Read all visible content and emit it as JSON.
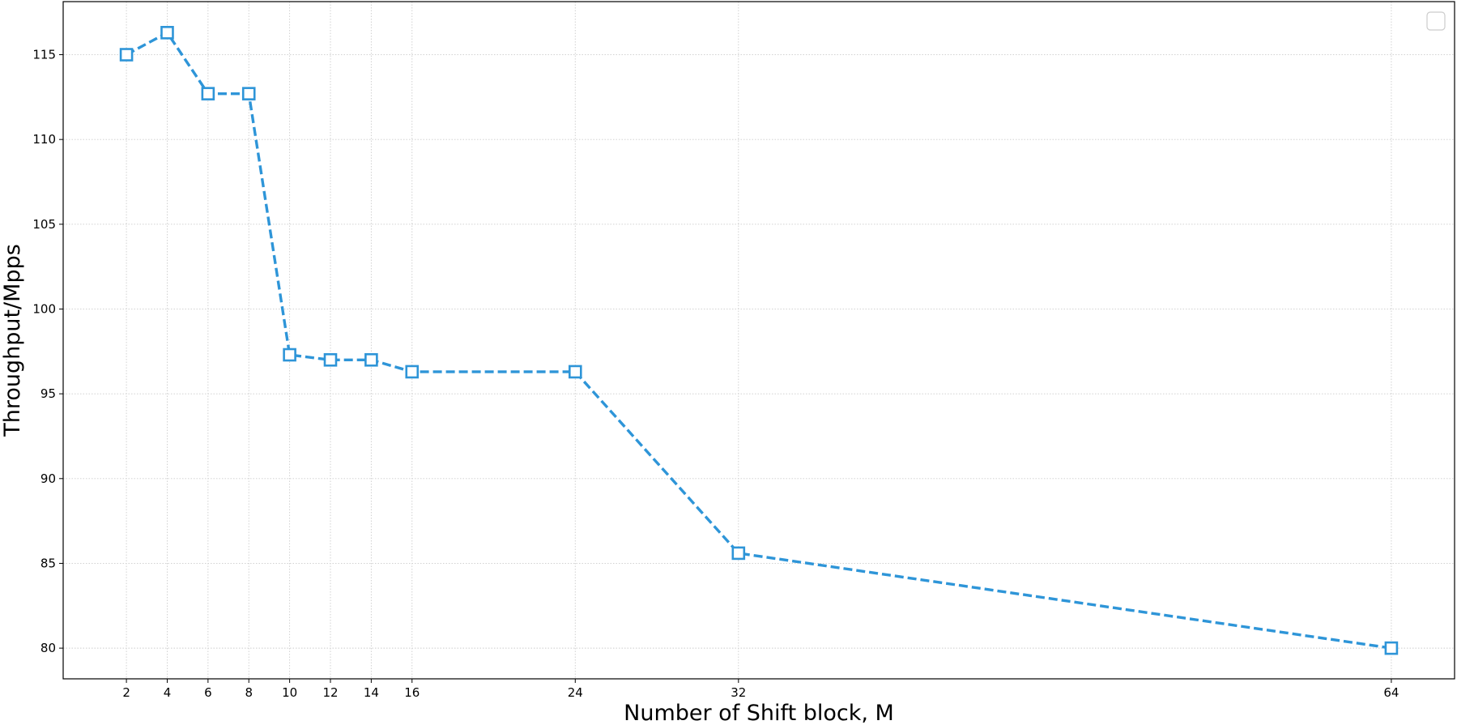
{
  "chart_data": {
    "type": "line",
    "xlabel": "Number of Shift block, M",
    "ylabel": "Throughput/Mpps",
    "x": [
      2,
      4,
      6,
      8,
      10,
      12,
      14,
      16,
      24,
      32,
      64
    ],
    "series": [
      {
        "color": "#2e95d8",
        "values": [
          115.0,
          116.3,
          112.7,
          112.7,
          97.3,
          97.0,
          97.0,
          96.3,
          96.3,
          85.6,
          80.0
        ]
      }
    ],
    "xlim": [
      -1.1,
      67.1
    ],
    "ylim": [
      78.19,
      118.13
    ],
    "xticks": [
      2,
      4,
      6,
      8,
      10,
      12,
      14,
      16,
      24,
      32,
      64
    ],
    "yticks": [
      80,
      85,
      90,
      95,
      100,
      105,
      110,
      115
    ],
    "grid": true,
    "marker": "square",
    "linestyle": "dashed"
  }
}
